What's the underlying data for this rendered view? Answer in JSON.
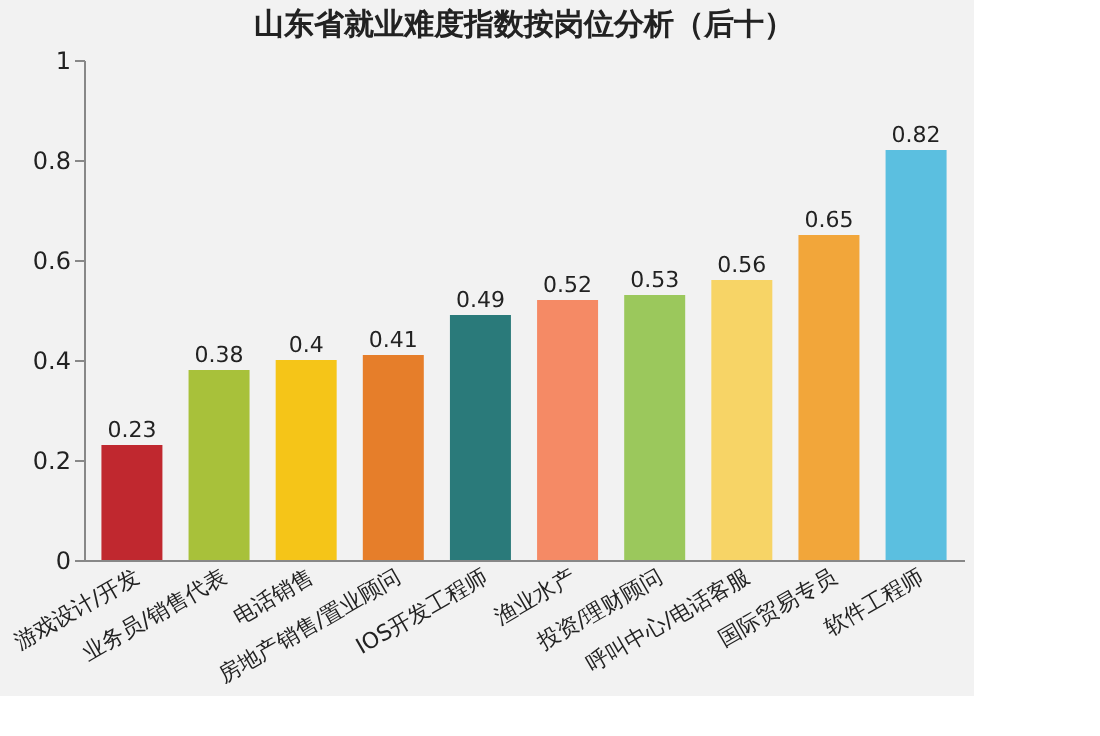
{
  "chart_data": {
    "type": "bar",
    "title": "山东省就业难度指数按岗位分析（后十）",
    "categories": [
      "游戏设计/开发",
      "业务员/销售代表",
      "电话销售",
      "房地产销售/置业顾问",
      "IOS开发工程师",
      "渔业水产",
      "投资/理财顾问",
      "呼叫中心/电话客服",
      "国际贸易专员",
      "软件工程师"
    ],
    "values": [
      0.23,
      0.38,
      0.4,
      0.41,
      0.49,
      0.52,
      0.53,
      0.56,
      0.65,
      0.82
    ],
    "colors": [
      "#c0282f",
      "#a8c13a",
      "#f5c518",
      "#e67e2a",
      "#2a7a7a",
      "#f58a65",
      "#9bc85c",
      "#f7d466",
      "#f2a63a",
      "#5bbfe0"
    ],
    "ylim": [
      0,
      1
    ],
    "yticks": [
      0,
      0.2,
      0.4,
      0.6,
      0.8,
      1
    ],
    "data_labels": true,
    "grid": false
  }
}
